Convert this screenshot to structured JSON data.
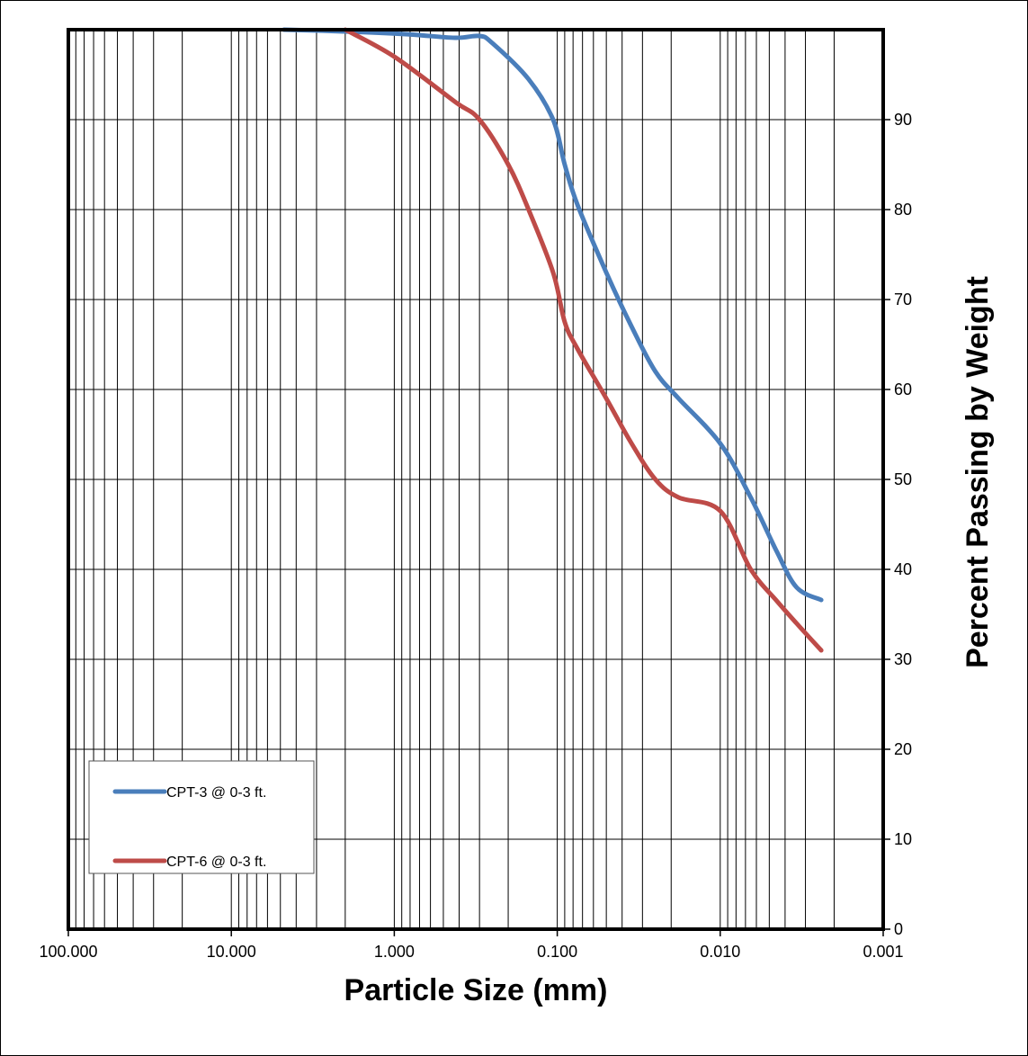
{
  "chart_data": {
    "type": "line",
    "x_scale": "log",
    "x_reversed": true,
    "xlim": [
      100,
      0.001
    ],
    "ylim": [
      0,
      100
    ],
    "xlabel": "Particle Size (mm)",
    "ylabel": "Percent Passing by Weight",
    "x_tick_labels": [
      {
        "value": 100,
        "label": "100.000"
      },
      {
        "value": 10,
        "label": "10.000"
      },
      {
        "value": 1,
        "label": "1.000"
      },
      {
        "value": 0.1,
        "label": "0.100"
      },
      {
        "value": 0.01,
        "label": "0.010"
      },
      {
        "value": 0.001,
        "label": "0.001"
      }
    ],
    "y_ticks": [
      0,
      10,
      20,
      30,
      40,
      50,
      60,
      70,
      80,
      90
    ],
    "y_axis_side": "right",
    "grid": true,
    "legend_position": "bottom-left",
    "series": [
      {
        "name": "CPT-3 @ 0-3 ft.",
        "color": "#4a7ebb",
        "points": [
          {
            "x": 4.75,
            "y": 100
          },
          {
            "x": 2.0,
            "y": 99.8
          },
          {
            "x": 0.85,
            "y": 99.5
          },
          {
            "x": 0.425,
            "y": 99.1
          },
          {
            "x": 0.3,
            "y": 99.3
          },
          {
            "x": 0.25,
            "y": 98.5
          },
          {
            "x": 0.15,
            "y": 94.5
          },
          {
            "x": 0.106,
            "y": 90
          },
          {
            "x": 0.09,
            "y": 85
          },
          {
            "x": 0.075,
            "y": 80.5
          },
          {
            "x": 0.05,
            "y": 73
          },
          {
            "x": 0.035,
            "y": 67
          },
          {
            "x": 0.025,
            "y": 62
          },
          {
            "x": 0.018,
            "y": 59
          },
          {
            "x": 0.01,
            "y": 54
          },
          {
            "x": 0.0065,
            "y": 48
          },
          {
            "x": 0.0045,
            "y": 42
          },
          {
            "x": 0.0034,
            "y": 38
          },
          {
            "x": 0.0024,
            "y": 36.6
          }
        ]
      },
      {
        "name": "CPT-6 @ 0-3 ft.",
        "color": "#be4b48",
        "points": [
          {
            "x": 2.0,
            "y": 100
          },
          {
            "x": 1.0,
            "y": 97
          },
          {
            "x": 0.425,
            "y": 92
          },
          {
            "x": 0.3,
            "y": 90
          },
          {
            "x": 0.2,
            "y": 85
          },
          {
            "x": 0.15,
            "y": 80
          },
          {
            "x": 0.106,
            "y": 73
          },
          {
            "x": 0.09,
            "y": 67.5
          },
          {
            "x": 0.075,
            "y": 64.5
          },
          {
            "x": 0.05,
            "y": 59
          },
          {
            "x": 0.035,
            "y": 54
          },
          {
            "x": 0.025,
            "y": 50
          },
          {
            "x": 0.018,
            "y": 48
          },
          {
            "x": 0.01,
            "y": 46.5
          },
          {
            "x": 0.0065,
            "y": 40
          },
          {
            "x": 0.0045,
            "y": 36.5
          },
          {
            "x": 0.0034,
            "y": 34
          },
          {
            "x": 0.0024,
            "y": 31
          }
        ]
      }
    ]
  }
}
